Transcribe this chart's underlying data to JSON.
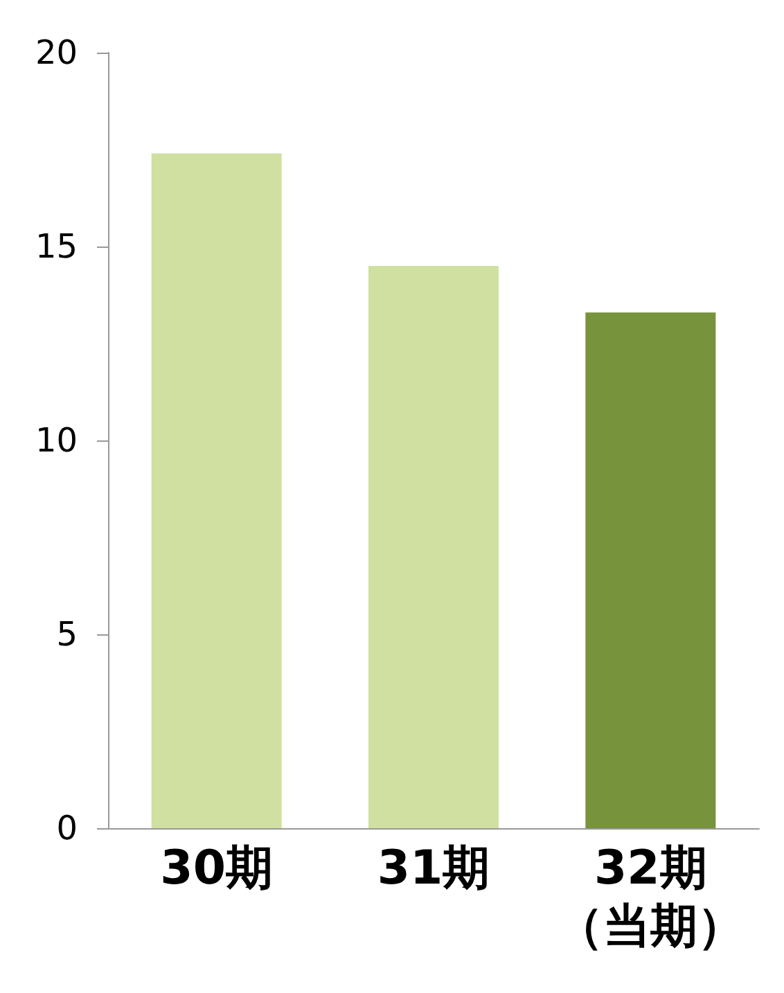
{
  "chart_data": {
    "type": "bar",
    "categories": [
      "30期",
      "31期",
      "32期（当期）"
    ],
    "values": [
      17.4,
      14.5,
      13.3
    ],
    "colors": [
      "#cfe0a0",
      "#cfe0a0",
      "#77933c"
    ],
    "ylim": [
      0,
      20
    ],
    "yticks": [
      0,
      5,
      10,
      15,
      20
    ],
    "grid": false
  }
}
